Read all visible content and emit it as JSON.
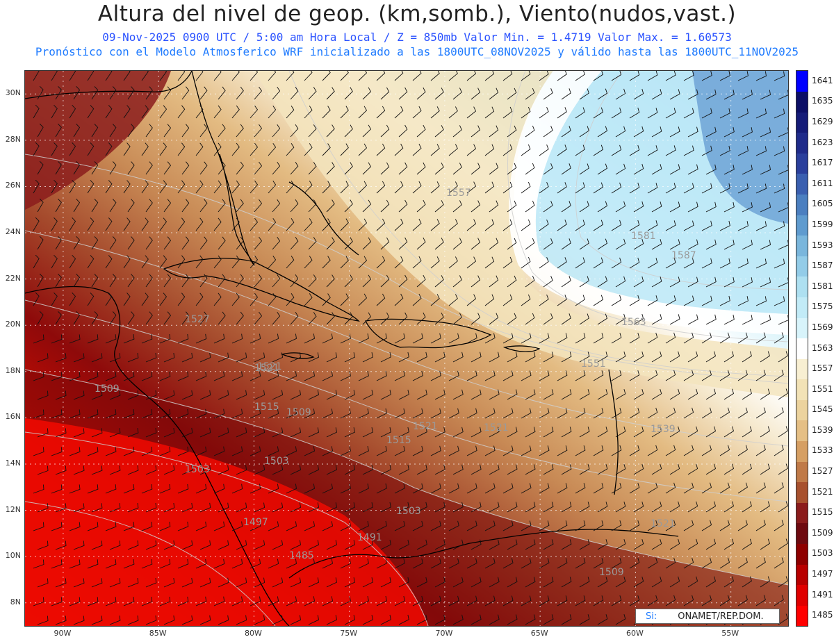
{
  "header": {
    "title": "Altura del nivel de geop. (km,somb.), Viento(nudos,vast.)",
    "line1": "09-Nov-2025  0900 UTC / 5:00 am Hora Local / Z = 850mb     Valor Min. = 1.4719  Valor Max. = 1.60573",
    "line2": "Pronóstico con el Modelo Atmosferico WRF inicializado a las 1800UTC_08NOV2025 y válido hasta las  1800UTC_11NOV2025"
  },
  "axes": {
    "lat_labels": [
      "30N",
      "28N",
      "26N",
      "24N",
      "22N",
      "20N",
      "18N",
      "16N",
      "14N",
      "12N",
      "10N",
      "8N"
    ],
    "lat_values": [
      30,
      28,
      26,
      24,
      22,
      20,
      18,
      16,
      14,
      12,
      10,
      8
    ],
    "lon_labels": [
      "90W",
      "85W",
      "80W",
      "75W",
      "70W",
      "65W",
      "60W",
      "55W"
    ],
    "lon_values": [
      -90,
      -85,
      -80,
      -75,
      -70,
      -65,
      -60,
      -55
    ],
    "lon_range": [
      -92,
      -52
    ],
    "lat_range": [
      7,
      31
    ]
  },
  "colorbar": {
    "levels": [
      "1485",
      "1491",
      "1497",
      "1503",
      "1509",
      "1515",
      "1521",
      "1527",
      "1533",
      "1539",
      "1545",
      "1551",
      "1557",
      "1563",
      "1569",
      "1575",
      "1581",
      "1587",
      "1593",
      "1599",
      "1605",
      "1611",
      "1617",
      "1623",
      "1629",
      "1635",
      "1641"
    ],
    "colors": [
      "#ff0000",
      "#e00000",
      "#b80000",
      "#8e0000",
      "#6e0a10",
      "#8b1c1c",
      "#a8512e",
      "#c07a48",
      "#d69f63",
      "#e5bf85",
      "#ecd39e",
      "#f2e2b6",
      "#f8efd2",
      "#ffffff",
      "#d8f4fb",
      "#c2ebf7",
      "#aee0f1",
      "#93cce8",
      "#7ab6dc",
      "#5f9bcf",
      "#4b7fc0",
      "#3a5fb0",
      "#2a3f9c",
      "#1f2b8a",
      "#151c78",
      "#0c0f66",
      "#0000ff"
    ]
  },
  "contour_labels": [
    "1557",
    "1587",
    "1581",
    "1563",
    "1551",
    "1539",
    "1521",
    "1527",
    "1521",
    "1509",
    "1515",
    "1509",
    "1521",
    "1521",
    "1515",
    "1503",
    "1503",
    "1497",
    "1503",
    "1491",
    "1485",
    "1509",
    "1521"
  ],
  "credit": {
    "si": "Si:",
    "org": "ONAMET/REP.DOM."
  }
}
